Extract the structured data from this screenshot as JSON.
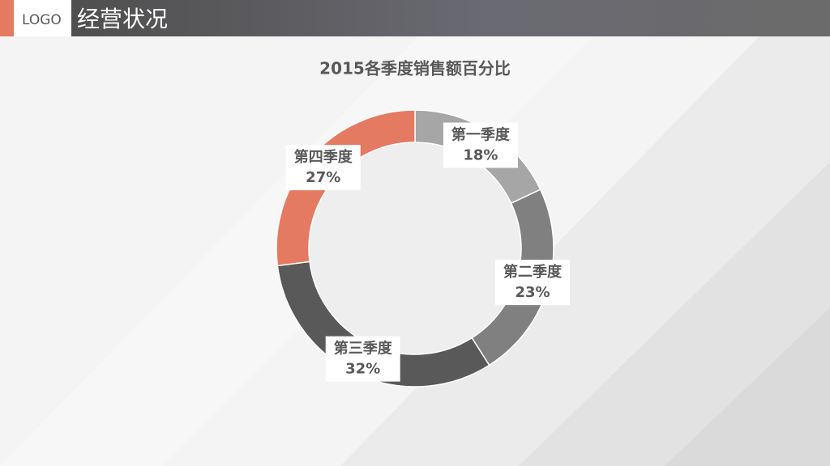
{
  "header": {
    "logo": "LOGO",
    "title": "经营状况"
  },
  "chart_data": {
    "type": "donut",
    "title": "2015各季度销售额百分比",
    "categories": [
      "第一季度",
      "第二季度",
      "第三季度",
      "第四季度"
    ],
    "values": [
      18,
      23,
      32,
      27
    ],
    "value_labels": [
      "18%",
      "23%",
      "32%",
      "27%"
    ],
    "colors": [
      "#a6a6a6",
      "#808080",
      "#595959",
      "#e57a62"
    ]
  }
}
